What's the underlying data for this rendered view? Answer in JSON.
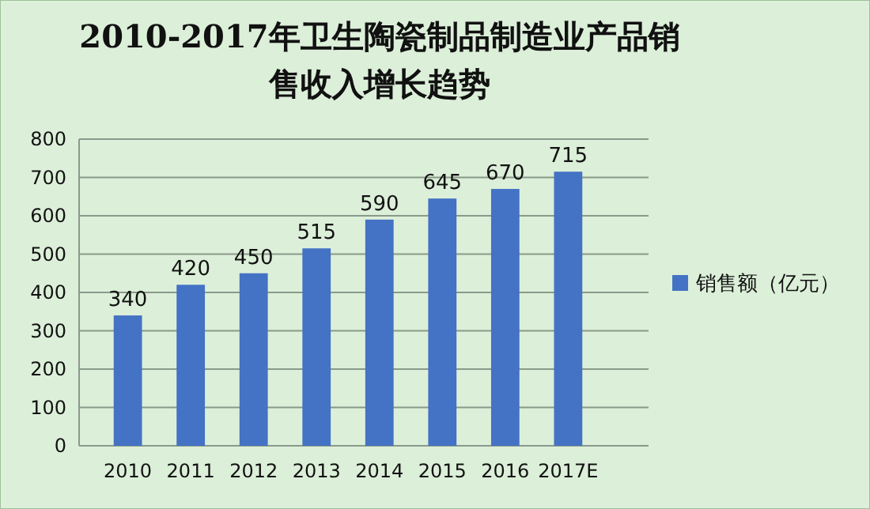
{
  "chart_data": {
    "type": "bar",
    "title": "2010-2017年卫生陶瓷制品制造业产品销售收入增长趋势",
    "categories": [
      "2010",
      "2011",
      "2012",
      "2013",
      "2014",
      "2015",
      "2016",
      "2017E"
    ],
    "series": [
      {
        "name": "销售额（亿元）",
        "color": "#4472c4",
        "values": [
          340,
          420,
          450,
          515,
          590,
          645,
          670,
          715
        ]
      }
    ],
    "ylim": [
      0,
      800
    ],
    "yticks": [
      0,
      100,
      200,
      300,
      400,
      500,
      600,
      700,
      800
    ],
    "grid": "y",
    "legend": "right",
    "data_labels": true
  }
}
